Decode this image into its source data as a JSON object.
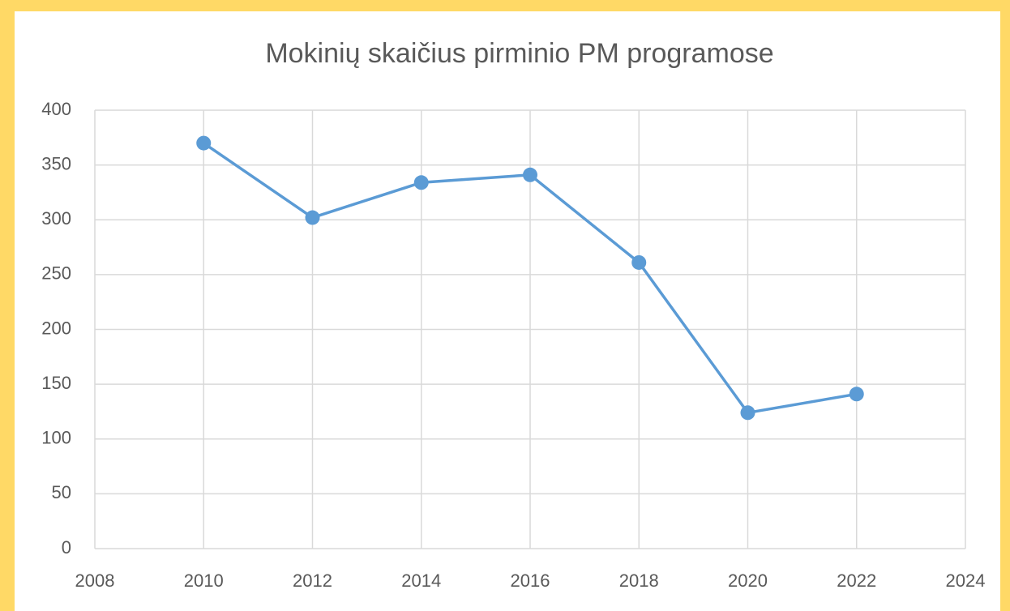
{
  "chart_data": {
    "type": "scatter",
    "title": "Mokinių skaičius pirminio PM programose",
    "x": [
      2010,
      2012,
      2014,
      2016,
      2018,
      2020,
      2022
    ],
    "values": [
      370,
      302,
      334,
      341,
      261,
      124,
      141
    ],
    "color": "#5b9bd5",
    "lines": true,
    "xlim": [
      2008,
      2024
    ],
    "xticks": [
      2008,
      2010,
      2012,
      2014,
      2016,
      2018,
      2020,
      2022,
      2024
    ],
    "ylim": [
      0,
      400
    ],
    "yticks": [
      0,
      50,
      100,
      150,
      200,
      250,
      300,
      350,
      400
    ],
    "grid": true
  }
}
